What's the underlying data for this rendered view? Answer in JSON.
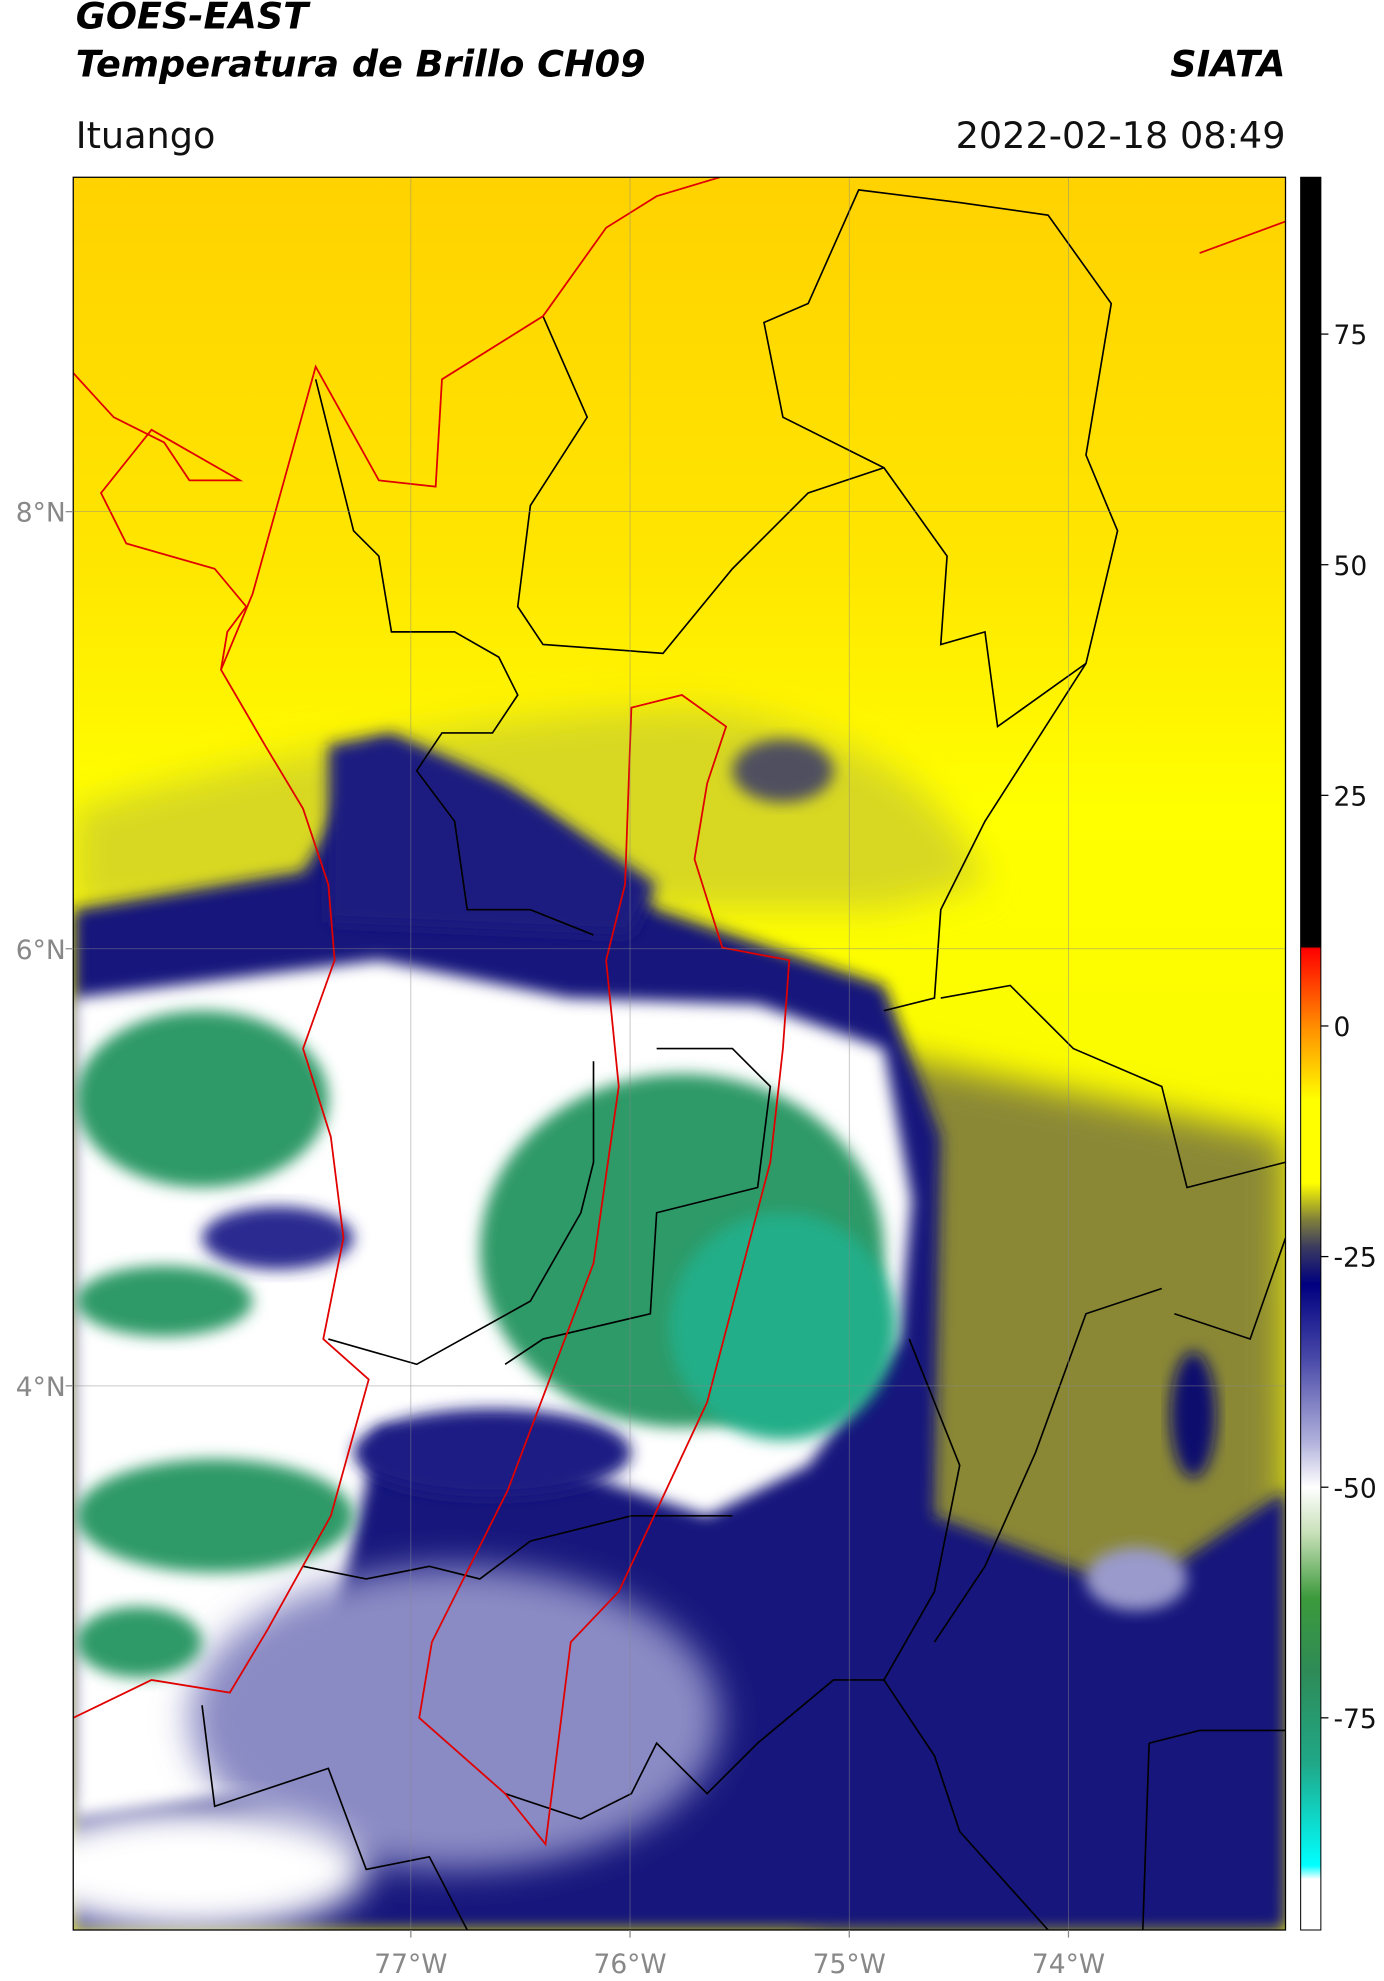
{
  "header": {
    "title": "GOES-EAST",
    "subtitle": "Temperatura de Brillo CH09",
    "source": "SIATA",
    "location": "Ituango",
    "datetime": "2022-02-18 08:49"
  },
  "map": {
    "xlim": [
      -78.54,
      -73.01
    ],
    "ylim": [
      1.51,
      9.53
    ],
    "xticks": [
      {
        "value": -77,
        "label": "77°W"
      },
      {
        "value": -76,
        "label": "76°W"
      },
      {
        "value": -75,
        "label": "75°W"
      },
      {
        "value": -74,
        "label": "74°W"
      }
    ],
    "yticks": [
      {
        "value": 8,
        "label": "8°N"
      },
      {
        "value": 6,
        "label": "6°N"
      },
      {
        "value": 4,
        "label": "4°N"
      }
    ],
    "grid": true
  },
  "colorbar": {
    "lim": [
      -98,
      92
    ],
    "ticks": [
      75,
      50,
      25,
      0,
      -25,
      -50,
      -75
    ],
    "stops": [
      {
        "value": 92,
        "color": "#000000"
      },
      {
        "value": 8.6,
        "color": "#000000"
      },
      {
        "value": 8.4,
        "color": "#ff0000"
      },
      {
        "value": 0,
        "color": "#ff8c00"
      },
      {
        "value": -8,
        "color": "#ffff00"
      },
      {
        "value": -17,
        "color": "#ffff00"
      },
      {
        "value": -21,
        "color": "#80803a"
      },
      {
        "value": -24,
        "color": "#3a3a60"
      },
      {
        "value": -28,
        "color": "#000080"
      },
      {
        "value": -36,
        "color": "#4848a8"
      },
      {
        "value": -45,
        "color": "#b0b0dc"
      },
      {
        "value": -50,
        "color": "#ffffff"
      },
      {
        "value": -55,
        "color": "#c8e0b8"
      },
      {
        "value": -62,
        "color": "#3c9a3c"
      },
      {
        "value": -70,
        "color": "#2e8b57"
      },
      {
        "value": -80,
        "color": "#20a888"
      },
      {
        "value": -91,
        "color": "#00ffff"
      },
      {
        "value": -92.5,
        "color": "#ffffff"
      },
      {
        "value": -98,
        "color": "#ffffff"
      }
    ]
  }
}
